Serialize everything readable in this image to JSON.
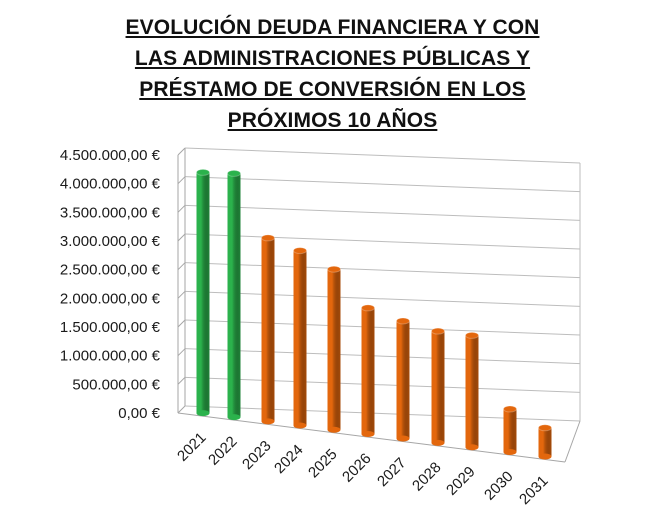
{
  "chart_data": {
    "type": "bar",
    "title_lines": [
      "EVOLUCIÓN DEUDA FINANCIERA Y CON",
      "LAS ADMINISTRACIONES PÚBLICAS Y",
      "PRÉSTAMO DE CONVERSIÓN EN LOS",
      "PRÓXIMOS 10 AÑOS"
    ],
    "categories": [
      "2021",
      "2022",
      "2023",
      "2024",
      "2025",
      "2026",
      "2027",
      "2028",
      "2029",
      "2030",
      "2031"
    ],
    "values": [
      4200000,
      4250000,
      3200000,
      3050000,
      2800000,
      2200000,
      2050000,
      1950000,
      1950000,
      750000,
      500000
    ],
    "colors": [
      "#2bb24c",
      "#2bb24c",
      "#e3670d",
      "#e3670d",
      "#e3670d",
      "#e3670d",
      "#e3670d",
      "#e3670d",
      "#e3670d",
      "#e3670d",
      "#e3670d"
    ],
    "y_ticks": [
      "4.500.000,00 €",
      "4.000.000,00 €",
      "3.500.000,00 €",
      "3.000.000,00 €",
      "2.500.000,00 €",
      "2.000.000,00 €",
      "1.500.000,00 €",
      "1.000.000,00 €",
      "500.000,00 €",
      "0,00 €"
    ],
    "ylim": [
      0,
      4500000
    ],
    "grid": true,
    "style": "3d-cylinders"
  }
}
